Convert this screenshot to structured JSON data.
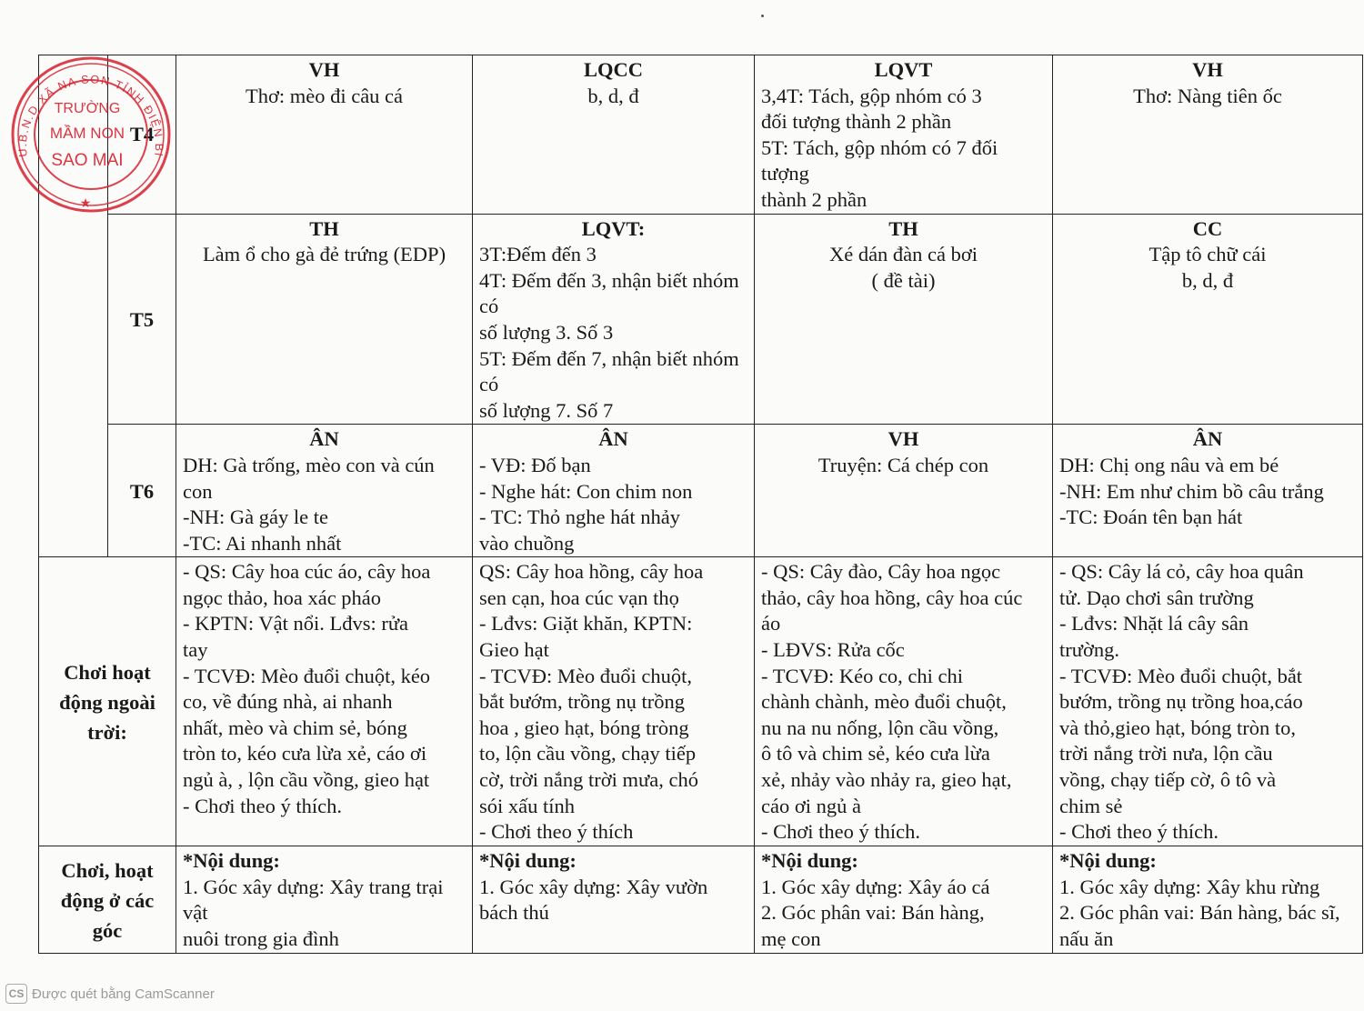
{
  "stamp": {
    "outer_text": "U.B.N.D XÃ NA SON TỈNH ĐIỆN BIÊN",
    "line1": "TRƯỜNG",
    "line2": "MẦM NON",
    "line3": "SAO MAI",
    "color": "#d8202e"
  },
  "rows": {
    "t4": {
      "day": "T4",
      "cells": [
        {
          "title": "VH",
          "lines": [
            "Thơ: mèo đi câu cá"
          ]
        },
        {
          "title": "LQCC",
          "lines": [
            "b, d, đ"
          ]
        },
        {
          "title": "LQVT",
          "lines": [
            "3,4T: Tách, gộp nhóm có 3",
            "đối tượng thành 2 phần",
            "5T: Tách, gộp nhóm có 7 đối tượng",
            "thành 2 phần"
          ]
        },
        {
          "title": "VH",
          "lines": [
            "Thơ: Nàng tiên ốc"
          ]
        }
      ]
    },
    "t5": {
      "day": "T5",
      "cells": [
        {
          "title": "TH",
          "lines": [
            "Làm ổ cho gà đẻ trứng (EDP)"
          ]
        },
        {
          "title": "LQVT:",
          "lines": [
            "3T:Đếm đến 3",
            "4T: Đếm đến 3, nhận biết nhóm có",
            "số lượng 3. Số 3",
            "5T: Đếm đến 7, nhận biết nhóm có",
            "số lượng 7. Số 7"
          ]
        },
        {
          "title": "TH",
          "lines": [
            "Xé dán đàn cá bơi",
            "( đề tài)"
          ]
        },
        {
          "title": "CC",
          "lines": [
            "Tập tô chữ cái",
            "b, d, đ"
          ]
        }
      ]
    },
    "t6": {
      "day": "T6",
      "cells": [
        {
          "title": "ÂN",
          "lines": [
            "DH: Gà trống, mèo con và cún con",
            "-NH: Gà gáy le te",
            "-TC:  Ai nhanh nhất"
          ]
        },
        {
          "title": "ÂN",
          "lines": [
            "- VĐ: Đố bạn",
            "- Nghe hát: Con chim non",
            "- TC: Thỏ nghe hát nhảy",
            "vào chuồng"
          ]
        },
        {
          "title": "VH",
          "lines": [
            "Truyện: Cá chép con"
          ]
        },
        {
          "title": "ÂN",
          "lines": [
            "DH: Chị ong nâu và em bé",
            "-NH: Em như chim bồ câu trắng",
            "-TC:  Đoán tên bạn hát"
          ]
        }
      ]
    },
    "outdoor": {
      "label": "Chơi hoạt động ngoài trời:",
      "cells": [
        {
          "lines": [
            "- QS: Cây hoa cúc áo, cây hoa",
            "ngọc thảo, hoa xác pháo",
            "- KPTN: Vật nổi.  Lđvs: rửa",
            "tay",
            "- TCVĐ: Mèo đuổi chuột, kéo",
            "co, về đúng nhà, ai nhanh",
            "nhất, mèo và chim sẻ, bóng",
            "tròn to, kéo cưa lừa xẻ, cáo ơi",
            "ngủ à, , lộn cầu vồng, gieo hạt",
            "- Chơi theo ý thích."
          ]
        },
        {
          "lines": [
            "QS: Cây hoa hồng, cây hoa",
            "sen cạn, hoa cúc vạn thọ",
            "- Lđvs: Giặt khăn, KPTN:",
            "Gieo hạt",
            "- TCVĐ: Mèo đuổi chuột,",
            "bắt bướm, trồng nụ trồng",
            "hoa , gieo hạt,  bóng tròng",
            "to, lộn cầu vồng, chạy tiếp",
            "cờ, trời nắng trời mưa, chó",
            "sói xấu tính",
            "- Chơi theo ý thích"
          ]
        },
        {
          "lines": [
            "- QS: Cây đào, Cây hoa ngọc",
            "thảo, cây hoa hồng, cây hoa cúc",
            "áo",
            "- LĐVS: Rửa cốc",
            "- TCVĐ: Kéo co, chi chi",
            "chành chành, mèo đuổi chuột,",
            "nu na nu nống, lộn cầu vồng,",
            "ô tô và chim sẻ, kéo cưa lừa",
            "xẻ, nhảy vào nhảy ra, gieo hạt,",
            "cáo ơi ngủ à",
            "- Chơi theo ý thích."
          ]
        },
        {
          "lines": [
            "- QS: Cây lá cỏ, cây hoa quân",
            "tử. Dạo chơi sân trường",
            "- Lđvs: Nhặt lá cây sân",
            "trường.",
            "- TCVĐ: Mèo đuổi chuột, bắt",
            "bướm, trồng nụ trồng hoa,cáo",
            "và thỏ,gieo hạt,  bóng tròn to,",
            "trời nắng trời nưa, lộn cầu",
            "vồng, chạy tiếp cờ, ô tô và",
            "chim sẻ",
            "- Chơi theo ý thích."
          ]
        }
      ]
    },
    "corners": {
      "label": "Chơi, hoạt động ở các góc",
      "cells": [
        {
          "title": "*Nội dung:",
          "lines": [
            "1. Góc xây dựng: Xây trang trại vật",
            "nuôi trong gia đình"
          ]
        },
        {
          "title": "*Nội dung:",
          "lines": [
            "1. Góc xây dựng: Xây vườn",
            "bách thú"
          ]
        },
        {
          "title": "*Nội dung:",
          "lines": [
            "1. Góc xây dựng:  Xây áo cá",
            "2. Góc phân vai: Bán hàng,",
            "mẹ con"
          ]
        },
        {
          "title": "*Nội dung:",
          "lines": [
            "1. Góc xây dựng:  Xây khu rừng",
            "2. Góc phân vai: Bán hàng, bác sĩ,",
            "nấu ăn"
          ]
        }
      ]
    }
  },
  "footer": {
    "logo": "CS",
    "text": "Được quét bằng CamScanner"
  }
}
